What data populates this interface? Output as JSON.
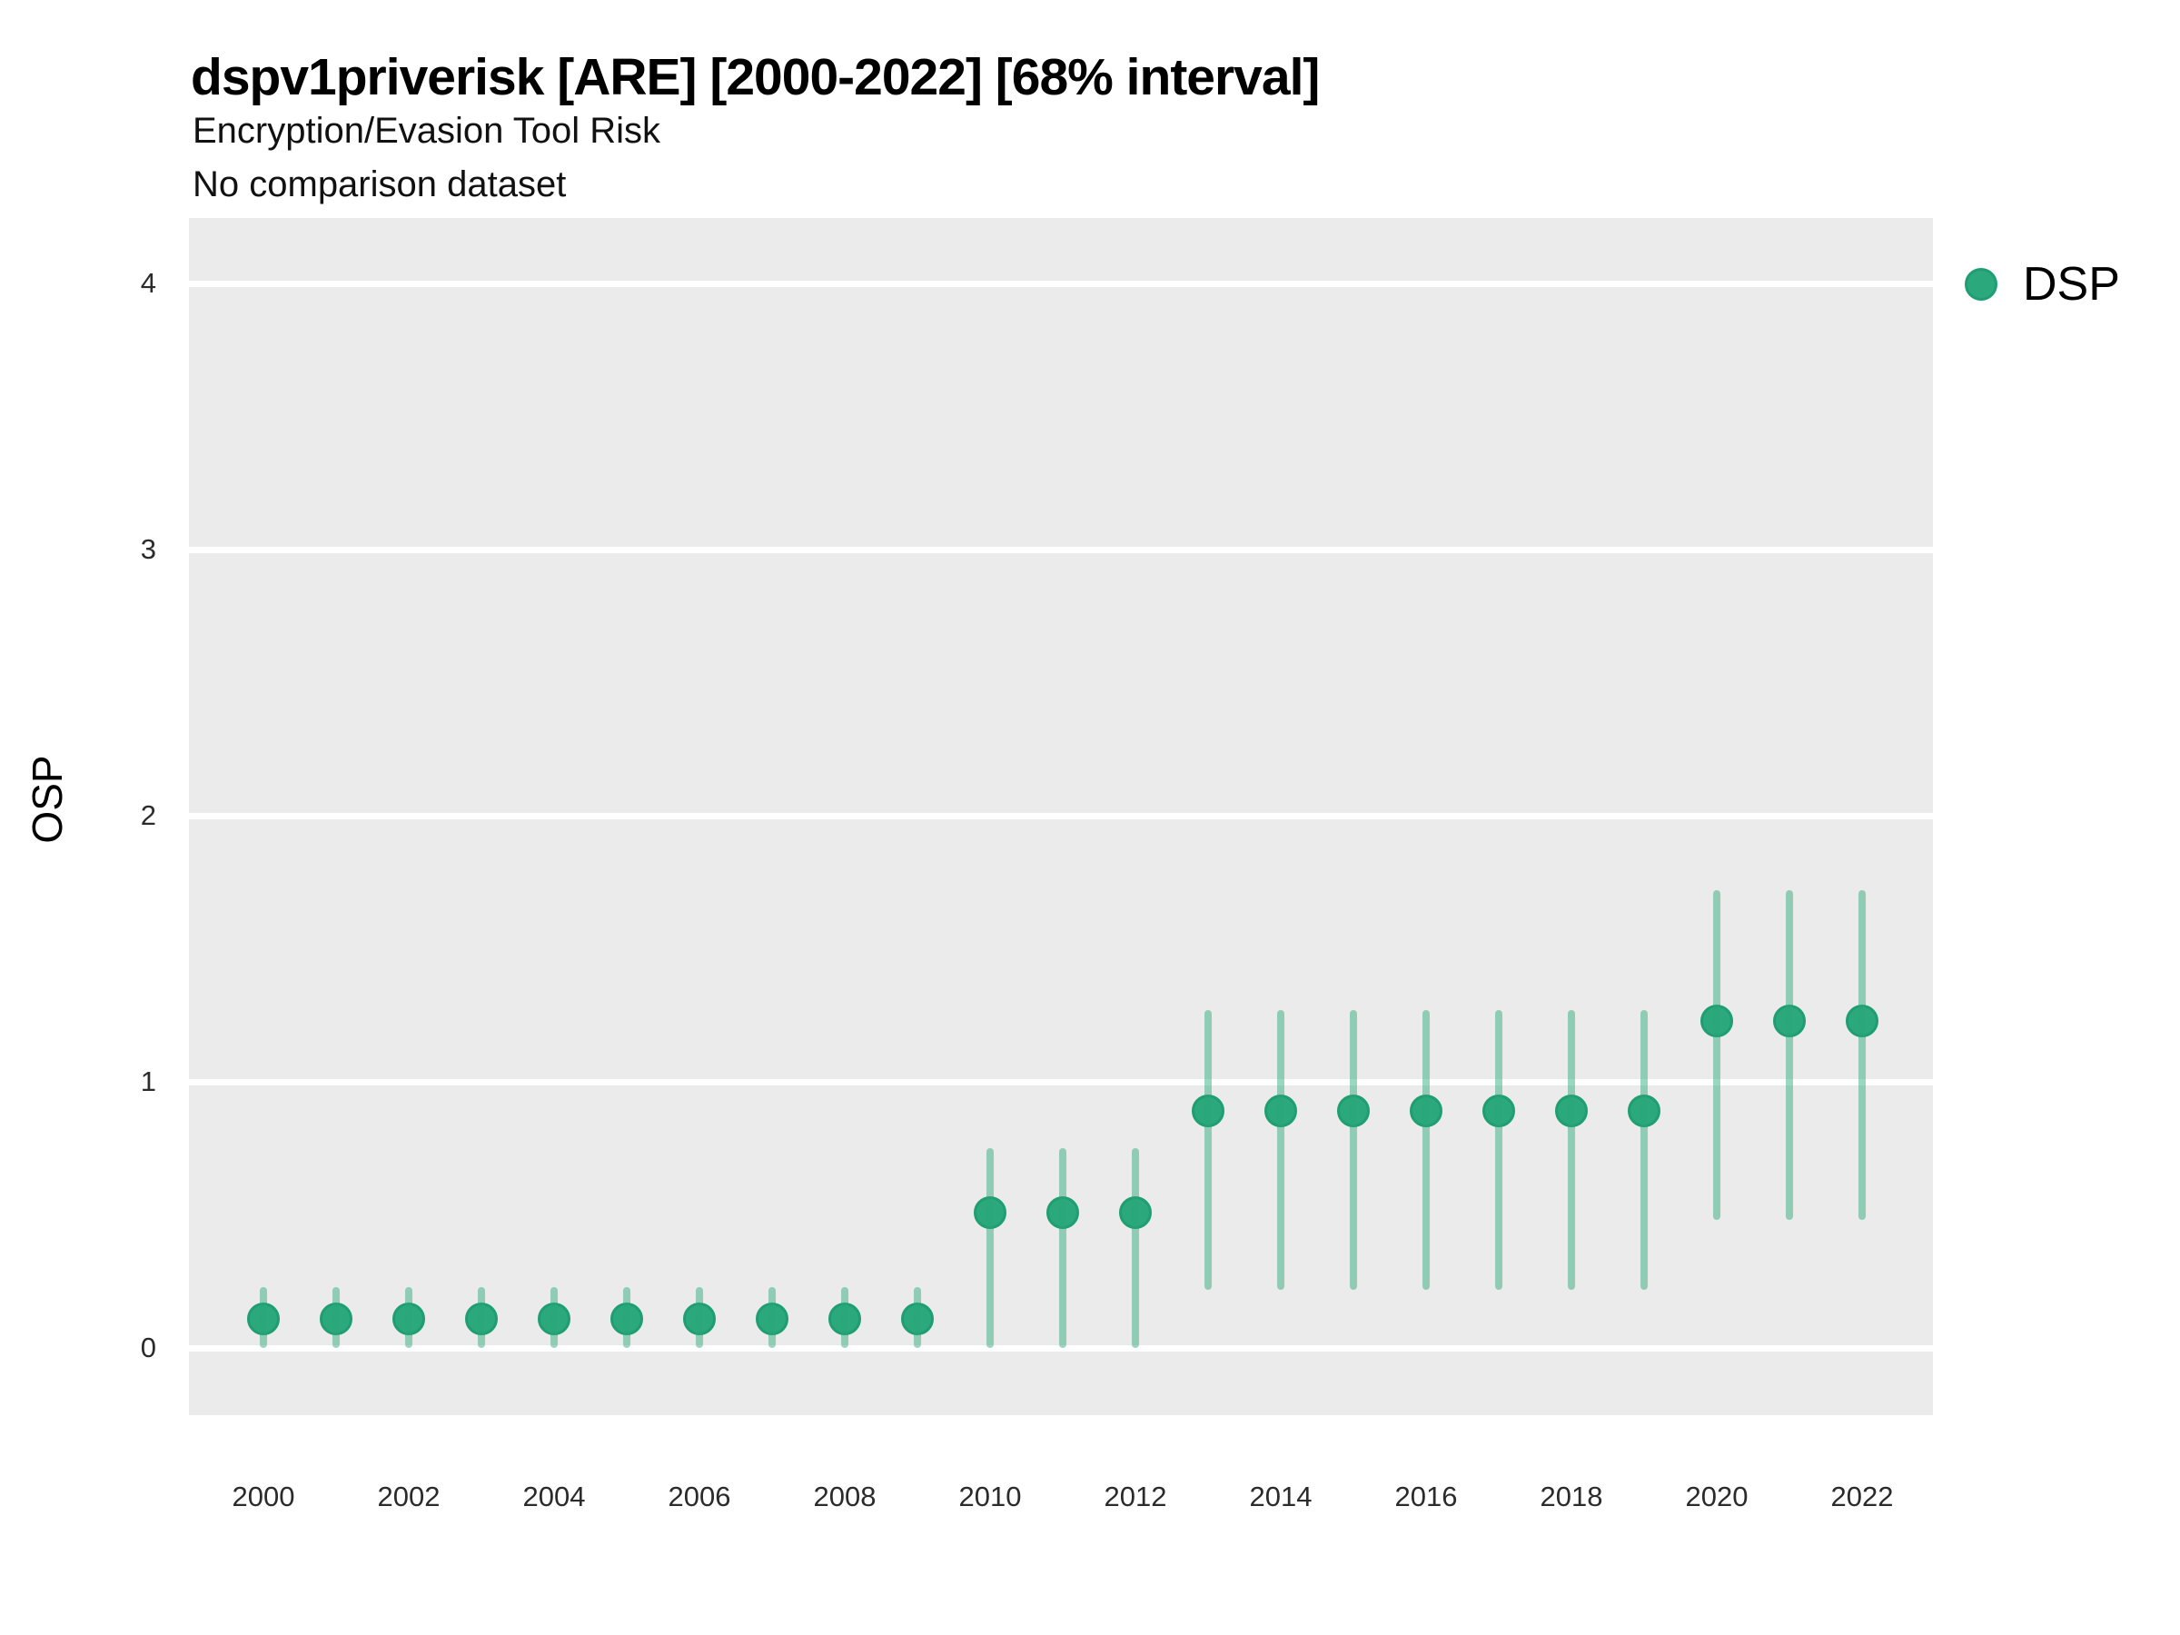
{
  "colors": {
    "page_background": "#FFFFFF",
    "panel_background": "#EBEBEB",
    "gridline": "#FFFFFF",
    "marker_fill": "#2BA87C",
    "marker_ring": "#1E9E72",
    "error_bar": "rgba(42,168,124,0.47)",
    "title_text": "#000000",
    "tick_text": "#2B2B2B"
  },
  "legend": {
    "items": [
      {
        "label": "DSP",
        "color": "#2BA87C"
      }
    ],
    "position": "right-top"
  },
  "chart_data": {
    "type": "scatter",
    "title": "dspv1priverisk [ARE] [2000-2022] [68% interval]",
    "subtitle": "Encryption/Evasion Tool Risk",
    "note": "No comparison dataset",
    "xlabel": "",
    "ylabel": "OSP",
    "interval_label": "68% interval",
    "grid": "horizontal-major-only",
    "legend_position": "right-top",
    "ylim": [
      0,
      4
    ],
    "yticks": [
      0,
      1,
      2,
      3,
      4
    ],
    "xticks": [
      2000,
      2002,
      2004,
      2006,
      2008,
      2010,
      2012,
      2014,
      2016,
      2018,
      2020,
      2022
    ],
    "x": [
      2000,
      2001,
      2002,
      2003,
      2004,
      2005,
      2006,
      2007,
      2008,
      2009,
      2010,
      2011,
      2012,
      2013,
      2014,
      2015,
      2016,
      2017,
      2018,
      2019,
      2020,
      2021,
      2022
    ],
    "series": [
      {
        "name": "DSP",
        "values": [
          0.11,
          0.11,
          0.11,
          0.11,
          0.11,
          0.11,
          0.11,
          0.11,
          0.11,
          0.11,
          0.51,
          0.51,
          0.51,
          0.89,
          0.89,
          0.89,
          0.89,
          0.89,
          0.89,
          0.89,
          1.23,
          1.23,
          1.23
        ],
        "lower_68": [
          0.0,
          0.0,
          0.0,
          0.0,
          0.0,
          0.0,
          0.0,
          0.0,
          0.0,
          0.0,
          0.0,
          0.0,
          0.0,
          0.22,
          0.22,
          0.22,
          0.22,
          0.22,
          0.22,
          0.22,
          0.48,
          0.48,
          0.48
        ],
        "upper_68": [
          0.23,
          0.23,
          0.23,
          0.23,
          0.23,
          0.23,
          0.23,
          0.23,
          0.23,
          0.23,
          0.75,
          0.75,
          0.75,
          1.27,
          1.27,
          1.27,
          1.27,
          1.27,
          1.27,
          1.27,
          1.72,
          1.72,
          1.72
        ]
      }
    ]
  }
}
